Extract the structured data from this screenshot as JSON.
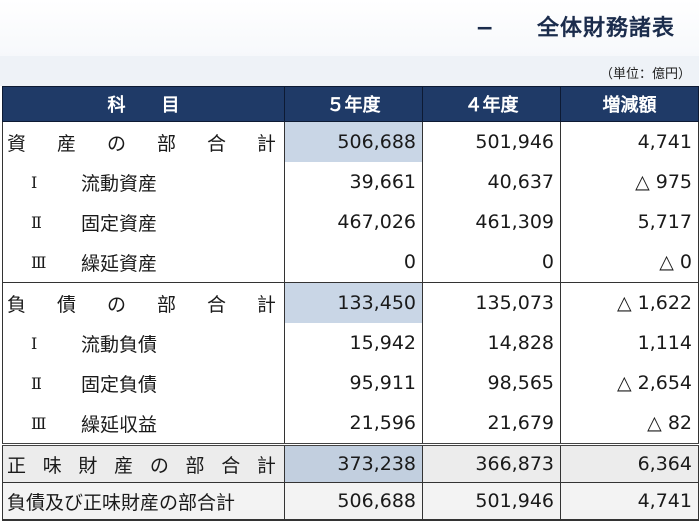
{
  "title": {
    "dash": "−",
    "text": "全体財務諸表"
  },
  "unit": "（単位：億円）",
  "headers": [
    "科　　目",
    "５年度",
    "４年度",
    "増減額"
  ],
  "rows": [
    {
      "chars": [
        "資",
        "産",
        "の",
        "部",
        "合",
        "計"
      ],
      "v5": "506,688",
      "v4": "501,946",
      "diff": "4,741"
    },
    {
      "roman": "Ⅰ",
      "label": "流動資産",
      "v5": "39,661",
      "v4": "40,637",
      "diff": "△ 975"
    },
    {
      "roman": "Ⅱ",
      "label": "固定資産",
      "v5": "467,026",
      "v4": "461,309",
      "diff": "5,717"
    },
    {
      "roman": "Ⅲ",
      "label": "繰延資産",
      "v5": "0",
      "v4": "0",
      "diff": "△ 0"
    },
    {
      "chars": [
        "負",
        "債",
        "の",
        "部",
        "合",
        "計"
      ],
      "v5": "133,450",
      "v4": "135,073",
      "diff": "△ 1,622"
    },
    {
      "roman": "Ⅰ",
      "label": "流動負債",
      "v5": "15,942",
      "v4": "14,828",
      "diff": "1,114"
    },
    {
      "roman": "Ⅱ",
      "label": "固定負債",
      "v5": "95,911",
      "v4": "98,565",
      "diff": "△ 2,654"
    },
    {
      "roman": "Ⅲ",
      "label": "繰延収益",
      "v5": "21,596",
      "v4": "21,679",
      "diff": "△ 82"
    },
    {
      "chars": [
        "正",
        "味",
        "財",
        "産",
        "の",
        "部",
        "合",
        "計"
      ],
      "v5": "373,238",
      "v4": "366,873",
      "diff": "6,364"
    },
    {
      "label": "負債及び正味財産の部合計",
      "v5": "506,688",
      "v4": "501,946",
      "diff": "4,741"
    }
  ]
}
